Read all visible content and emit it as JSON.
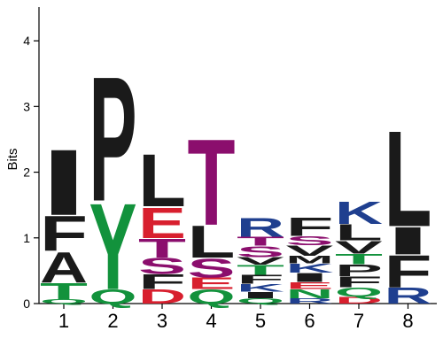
{
  "chart_data": {
    "type": "sequence-logo",
    "ylabel": "Bits",
    "ylim": [
      0,
      4.5
    ],
    "yticks": [
      "0",
      "1",
      "2",
      "3",
      "4"
    ],
    "grid": false,
    "legend": "none",
    "colors": {
      "hydrophobic": "#1a1a1a",
      "polar": "#12923c",
      "acidic": "#d81f2e",
      "basic": "#1f3f8f",
      "amide": "#8b0e6d"
    },
    "positions": [
      {
        "label": "1",
        "stack": [
          {
            "aa": "Q",
            "bits": 0.07,
            "color": "#12923c"
          },
          {
            "aa": "T",
            "bits": 0.25,
            "color": "#12923c"
          },
          {
            "aa": "A",
            "bits": 0.48,
            "color": "#1a1a1a"
          },
          {
            "aa": "F",
            "bits": 0.55,
            "color": "#1a1a1a"
          },
          {
            "aa": "I",
            "bits": 1.03,
            "color": "#1a1a1a"
          }
        ]
      },
      {
        "label": "2",
        "stack": [
          {
            "aa": "Q",
            "bits": 0.22,
            "color": "#12923c"
          },
          {
            "aa": "Y",
            "bits": 1.35,
            "color": "#12923c"
          },
          {
            "aa": "P",
            "bits": 1.95,
            "color": "#1a1a1a"
          }
        ]
      },
      {
        "label": "3",
        "stack": [
          {
            "aa": "D",
            "bits": 0.22,
            "color": "#d81f2e"
          },
          {
            "aa": "F",
            "bits": 0.23,
            "color": "#1a1a1a"
          },
          {
            "aa": "S",
            "bits": 0.25,
            "color": "#8b0e6d"
          },
          {
            "aa": "T",
            "bits": 0.3,
            "color": "#8b0e6d"
          },
          {
            "aa": "E",
            "bits": 0.48,
            "color": "#d81f2e"
          },
          {
            "aa": "L",
            "bits": 0.82,
            "color": "#1a1a1a"
          }
        ]
      },
      {
        "label": "4",
        "stack": [
          {
            "aa": "Q",
            "bits": 0.22,
            "color": "#12923c"
          },
          {
            "aa": "E",
            "bits": 0.18,
            "color": "#d81f2e"
          },
          {
            "aa": "S",
            "bits": 0.3,
            "color": "#8b0e6d"
          },
          {
            "aa": "L",
            "bits": 0.5,
            "color": "#1a1a1a"
          },
          {
            "aa": "T",
            "bits": 1.35,
            "color": "#8b0e6d"
          }
        ]
      },
      {
        "label": "5",
        "stack": [
          {
            "aa": "Q",
            "bits": 0.08,
            "color": "#12923c"
          },
          {
            "aa": "I",
            "bits": 0.1,
            "color": "#1a1a1a"
          },
          {
            "aa": "K",
            "bits": 0.12,
            "color": "#1f3f8f"
          },
          {
            "aa": "F",
            "bits": 0.14,
            "color": "#1a1a1a"
          },
          {
            "aa": "T",
            "bits": 0.15,
            "color": "#12923c"
          },
          {
            "aa": "V",
            "bits": 0.12,
            "color": "#1a1a1a"
          },
          {
            "aa": "S",
            "bits": 0.17,
            "color": "#8b0e6d"
          },
          {
            "aa": "T",
            "bits": 0.14,
            "color": "#8b0e6d"
          },
          {
            "aa": "R",
            "bits": 0.3,
            "color": "#1f3f8f"
          }
        ]
      },
      {
        "label": "6",
        "stack": [
          {
            "aa": "R",
            "bits": 0.08,
            "color": "#1f3f8f"
          },
          {
            "aa": "N",
            "bits": 0.14,
            "color": "#12923c"
          },
          {
            "aa": "E",
            "bits": 0.11,
            "color": "#d81f2e"
          },
          {
            "aa": "I",
            "bits": 0.14,
            "color": "#1a1a1a"
          },
          {
            "aa": "K",
            "bits": 0.14,
            "color": "#1f3f8f"
          },
          {
            "aa": "M",
            "bits": 0.12,
            "color": "#1a1a1a"
          },
          {
            "aa": "V",
            "bits": 0.16,
            "color": "#1a1a1a"
          },
          {
            "aa": "S",
            "bits": 0.14,
            "color": "#8b0e6d"
          },
          {
            "aa": "F",
            "bits": 0.29,
            "color": "#1a1a1a"
          }
        ]
      },
      {
        "label": "7",
        "stack": [
          {
            "aa": "D",
            "bits": 0.11,
            "color": "#d81f2e"
          },
          {
            "aa": "Q",
            "bits": 0.14,
            "color": "#12923c"
          },
          {
            "aa": "F",
            "bits": 0.17,
            "color": "#1a1a1a"
          },
          {
            "aa": "P",
            "bits": 0.18,
            "color": "#1a1a1a"
          },
          {
            "aa": "T",
            "bits": 0.16,
            "color": "#12923c"
          },
          {
            "aa": "V",
            "bits": 0.2,
            "color": "#1a1a1a"
          },
          {
            "aa": "L",
            "bits": 0.25,
            "color": "#1a1a1a"
          },
          {
            "aa": "K",
            "bits": 0.35,
            "color": "#1f3f8f"
          }
        ]
      },
      {
        "label": "8",
        "stack": [
          {
            "aa": "R",
            "bits": 0.25,
            "color": "#1f3f8f"
          },
          {
            "aa": "F",
            "bits": 0.5,
            "color": "#1a1a1a"
          },
          {
            "aa": "I",
            "bits": 0.43,
            "color": "#1a1a1a"
          },
          {
            "aa": "L",
            "bits": 1.5,
            "color": "#1a1a1a"
          }
        ]
      }
    ]
  }
}
